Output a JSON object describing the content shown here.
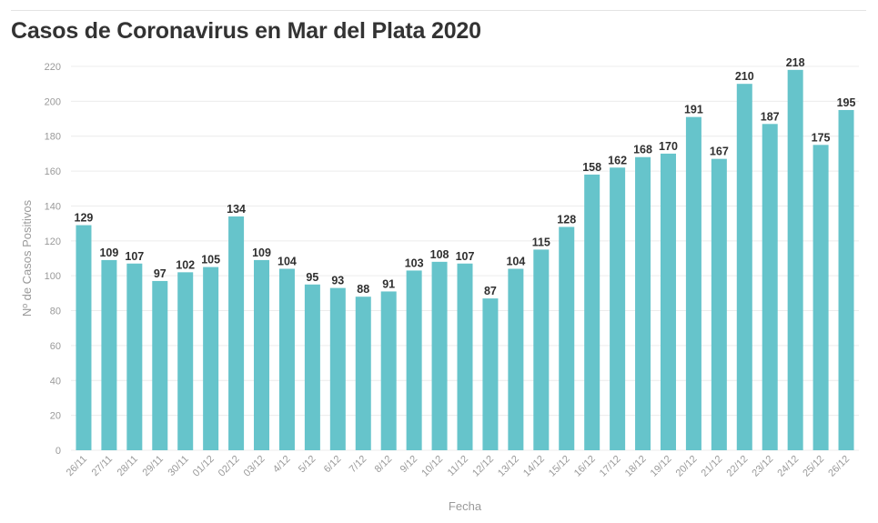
{
  "chart_data": {
    "type": "bar",
    "title": "Casos de Coronavirus en Mar del Plata 2020",
    "xlabel": "Fecha",
    "ylabel": "Nº de Casos Positivos",
    "ylim": [
      0,
      220
    ],
    "yticks": [
      0,
      20,
      40,
      60,
      80,
      100,
      120,
      140,
      160,
      180,
      200,
      220
    ],
    "grid": true,
    "bar_color": "#66c4cb",
    "categories": [
      "26/11",
      "27/11",
      "28/11",
      "29/11",
      "30/11",
      "01/12",
      "02/12",
      "03/12",
      "4/12",
      "5/12",
      "6/12",
      "7/12",
      "8/12",
      "9/12",
      "10/12",
      "11/12",
      "12/12",
      "13/12",
      "14/12",
      "15/12",
      "16/12",
      "17/12",
      "18/12",
      "19/12",
      "20/12",
      "21/12",
      "22/12",
      "23/12",
      "24/12",
      "25/12",
      "26/12"
    ],
    "values": [
      129,
      109,
      107,
      97,
      102,
      105,
      134,
      109,
      104,
      95,
      93,
      88,
      91,
      103,
      108,
      107,
      87,
      104,
      115,
      128,
      158,
      162,
      168,
      170,
      191,
      167,
      210,
      187,
      218,
      175,
      195
    ]
  }
}
